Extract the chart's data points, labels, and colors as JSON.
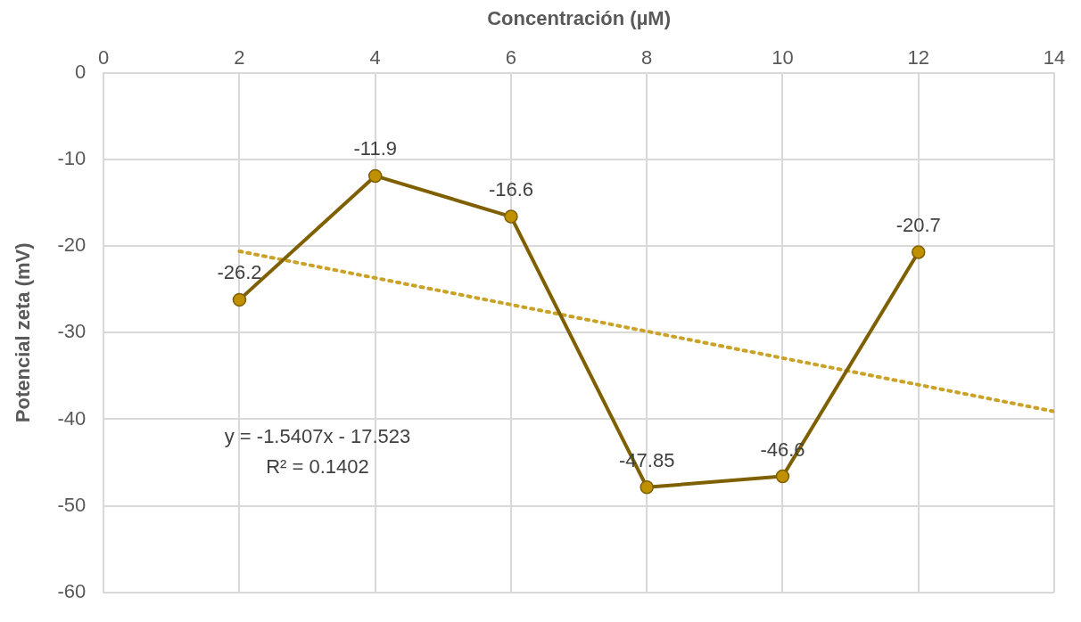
{
  "chart_data": {
    "type": "line",
    "xlabel": "Concentración (µM)",
    "ylabel": "Potencial zeta (mV)",
    "x": [
      2,
      4,
      6,
      8,
      10,
      12
    ],
    "series": [
      {
        "color": "#7f6000",
        "values": [
          -26.2,
          -11.9,
          -16.6,
          -47.85,
          -46.6,
          -20.7
        ],
        "value_labels": [
          "-26.2",
          "-11.9",
          "-16.6",
          "-47.85",
          "-46.6",
          "-20.7"
        ],
        "marker": "circle",
        "line_style": "solid"
      },
      {
        "type": "line",
        "color": "#c9a227",
        "x": [
          2,
          14
        ],
        "values": [
          -20.6,
          -39.1
        ],
        "marker": "none",
        "line_style": "dotted"
      }
    ],
    "xlim": [
      0,
      14
    ],
    "xticks": [
      0,
      2,
      4,
      6,
      8,
      10,
      12,
      14
    ],
    "ylim": [
      -60,
      0
    ],
    "yticks": [
      -60,
      -50,
      -40,
      -30,
      -20,
      -10,
      0
    ],
    "grid": true,
    "legend": false,
    "annotations": [
      "y = -1.5407x - 17.523",
      "R² = 0.1402"
    ]
  }
}
